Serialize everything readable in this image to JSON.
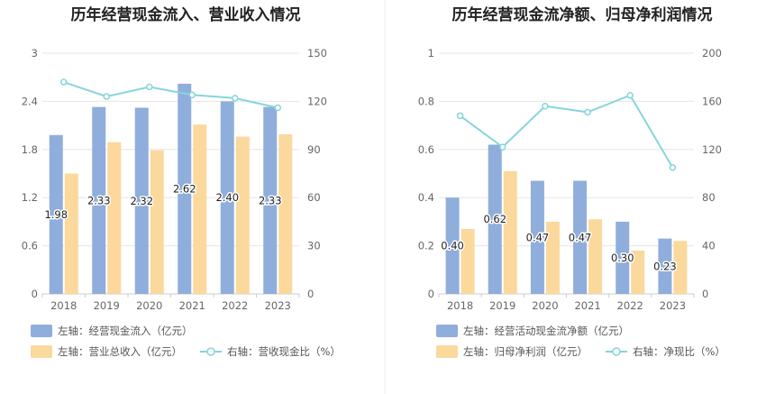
{
  "chart_data": [
    {
      "type": "bar+line",
      "title": "历年经营现金流入、营业收入情况",
      "categories": [
        "2018",
        "2019",
        "2020",
        "2021",
        "2022",
        "2023"
      ],
      "left_axis": {
        "ticks": [
          "0",
          "0.6",
          "1.2",
          "1.8",
          "2.4",
          "3"
        ],
        "ylim": [
          0,
          3
        ]
      },
      "right_axis": {
        "ticks": [
          "0",
          "30",
          "60",
          "90",
          "120",
          "150"
        ],
        "ylim": [
          0,
          150
        ]
      },
      "series": [
        {
          "name": "左轴：经营现金流入（亿元）",
          "axis": "left",
          "kind": "bar",
          "color": "#8FAEDB",
          "values": [
            1.98,
            2.33,
            2.32,
            2.62,
            2.4,
            2.33
          ],
          "labels": [
            "1.98",
            "2.33",
            "2.32",
            "2.62",
            "2.40",
            "2.33"
          ]
        },
        {
          "name": "左轴：营业总收入（亿元）",
          "axis": "left",
          "kind": "bar",
          "color": "#FBD89C",
          "values": [
            1.5,
            1.89,
            1.79,
            2.11,
            1.96,
            1.99
          ]
        },
        {
          "name": "右轴：营收现金比（%）",
          "axis": "right",
          "kind": "line",
          "color": "#86D5DA",
          "values": [
            132,
            123,
            129,
            124,
            122,
            116
          ]
        }
      ]
    },
    {
      "type": "bar+line",
      "title": "历年经营现金流净额、归母净利润情况",
      "categories": [
        "2018",
        "2019",
        "2020",
        "2021",
        "2022",
        "2023"
      ],
      "left_axis": {
        "ticks": [
          "0",
          "0.2",
          "0.4",
          "0.6",
          "0.8",
          "1"
        ],
        "ylim": [
          0,
          1
        ]
      },
      "right_axis": {
        "ticks": [
          "0",
          "40",
          "80",
          "120",
          "160",
          "200"
        ],
        "ylim": [
          0,
          200
        ]
      },
      "series": [
        {
          "name": "左轴：经营活动现金流净额（亿元）",
          "axis": "left",
          "kind": "bar",
          "color": "#8FAEDB",
          "values": [
            0.4,
            0.62,
            0.47,
            0.47,
            0.3,
            0.23
          ],
          "labels": [
            "0.40",
            "0.62",
            "0.47",
            "0.47",
            "0.30",
            "0.23"
          ]
        },
        {
          "name": "左轴：归母净利润（亿元）",
          "axis": "left",
          "kind": "bar",
          "color": "#FBD89C",
          "values": [
            0.27,
            0.51,
            0.3,
            0.31,
            0.18,
            0.22
          ]
        },
        {
          "name": "右轴：净现比（%）",
          "axis": "right",
          "kind": "line",
          "color": "#86D5DA",
          "values": [
            148,
            122,
            156,
            151,
            165,
            105
          ]
        }
      ]
    }
  ]
}
